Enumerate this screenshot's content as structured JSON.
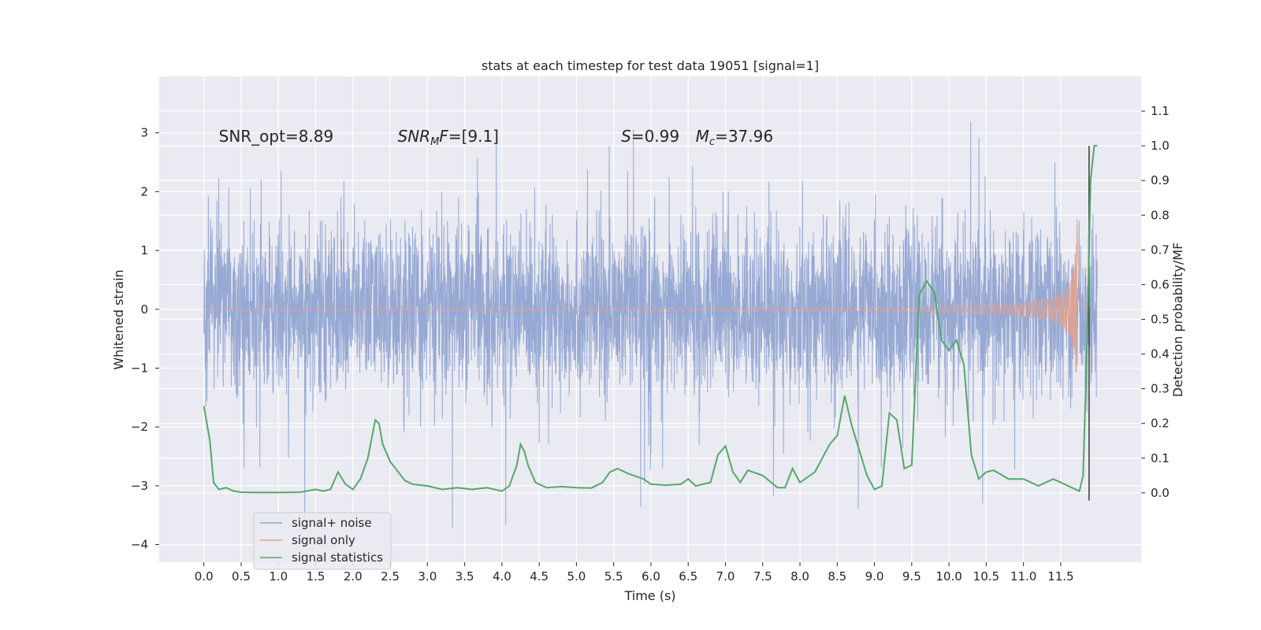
{
  "chart_data": {
    "type": "line",
    "title": "stats at each timestep for test data 19051 [signal=1]",
    "xlabel": "Time (s)",
    "ylabel_left": "Whitened strain",
    "ylabel_right": "Detection probability/MF",
    "xlim": [
      -0.6,
      12.58
    ],
    "ylim_left": [
      -4.3,
      3.96
    ],
    "ylim_right": [
      -0.2,
      1.2
    ],
    "x_ticks": [
      0.0,
      0.5,
      1.0,
      1.5,
      2.0,
      2.5,
      3.0,
      3.5,
      4.0,
      4.5,
      5.0,
      5.5,
      6.0,
      6.5,
      7.0,
      7.5,
      8.0,
      8.5,
      9.0,
      9.5,
      10.0,
      10.5,
      11.0,
      11.5
    ],
    "x_tick_labels": [
      "0.0",
      "0.5",
      "1.0",
      "1.5",
      "2.0",
      "2.5",
      "3.0",
      "3.5",
      "4.0",
      "4.5",
      "5.0",
      "5.5",
      "6.0",
      "6.5",
      "7.0",
      "7.5",
      "8.0",
      "8.5",
      "9.0",
      "9.5",
      "10.0",
      "10.5",
      "11.0",
      "11.5"
    ],
    "y_left_ticks": [
      -4,
      -3,
      -2,
      -1,
      0,
      1,
      2,
      3
    ],
    "y_left_tick_labels": [
      "−4",
      "−3",
      "−2",
      "−1",
      "0",
      "1",
      "2",
      "3"
    ],
    "y_right_ticks": [
      0.0,
      0.1,
      0.2,
      0.3,
      0.4,
      0.5,
      0.6,
      0.7,
      0.8,
      0.9,
      1.0,
      1.1
    ],
    "y_right_tick_labels": [
      "0.0",
      "0.1",
      "0.2",
      "0.3",
      "0.4",
      "0.5",
      "0.6",
      "0.7",
      "0.8",
      "0.9",
      "1.0",
      "1.1"
    ],
    "grid": true,
    "legend_position": "lower-left",
    "annotations": [
      {
        "text": "SNR_opt=8.89",
        "x": 0.2,
        "y": 2.85
      },
      {
        "text": "SNR_MF=[9.1]",
        "x": 2.6,
        "y": 2.85
      },
      {
        "text": "S=0.99",
        "x": 5.6,
        "y": 2.85
      },
      {
        "text": "M_c=37.96",
        "x": 6.6,
        "y": 2.85
      }
    ],
    "detection_marker": {
      "x": 11.88,
      "y_top": 2.78,
      "y_bottom": -3.25,
      "color": "#444444"
    },
    "series": [
      {
        "name": "signal+ noise",
        "axis": "left",
        "color": "#8ea2cf",
        "kind": "noise",
        "duration": [
          0.0,
          11.99
        ],
        "sigma": 0.8,
        "envelope_max": 3.6,
        "envelope_min": -4.1
      },
      {
        "name": "signal only",
        "axis": "left",
        "color": "#e7a189",
        "kind": "chirp",
        "duration": [
          0.0,
          11.99
        ],
        "peak_time": 11.72,
        "peak_amplitude": 1.8
      },
      {
        "name": "signal statistics",
        "axis": "right",
        "color": "#55a868",
        "kind": "line",
        "x": [
          0.0,
          0.08,
          0.13,
          0.2,
          0.3,
          0.4,
          0.5,
          0.7,
          1.0,
          1.3,
          1.5,
          1.6,
          1.7,
          1.8,
          1.9,
          2.0,
          2.1,
          2.2,
          2.3,
          2.35,
          2.4,
          2.5,
          2.7,
          2.8,
          3.0,
          3.2,
          3.4,
          3.6,
          3.8,
          3.9,
          4.0,
          4.1,
          4.2,
          4.25,
          4.3,
          4.35,
          4.45,
          4.6,
          4.8,
          5.0,
          5.2,
          5.35,
          5.45,
          5.55,
          5.7,
          5.9,
          6.0,
          6.2,
          6.4,
          6.5,
          6.6,
          6.8,
          6.9,
          7.0,
          7.1,
          7.2,
          7.3,
          7.5,
          7.7,
          7.8,
          7.9,
          8.0,
          8.2,
          8.4,
          8.5,
          8.6,
          8.7,
          8.8,
          8.9,
          9.0,
          9.1,
          9.2,
          9.3,
          9.4,
          9.5,
          9.6,
          9.7,
          9.8,
          9.9,
          10.0,
          10.1,
          10.2,
          10.3,
          10.4,
          10.5,
          10.6,
          10.8,
          11.0,
          11.2,
          11.3,
          11.4,
          11.5,
          11.6,
          11.7,
          11.75,
          11.8,
          11.85,
          11.9,
          11.95,
          11.99
        ],
        "y": [
          0.25,
          0.15,
          0.03,
          0.01,
          0.015,
          0.005,
          0.002,
          0.001,
          0.001,
          0.002,
          0.01,
          0.005,
          0.01,
          0.06,
          0.025,
          0.01,
          0.04,
          0.1,
          0.21,
          0.2,
          0.14,
          0.09,
          0.035,
          0.025,
          0.02,
          0.01,
          0.015,
          0.01,
          0.015,
          0.01,
          0.005,
          0.02,
          0.08,
          0.14,
          0.12,
          0.08,
          0.03,
          0.015,
          0.018,
          0.015,
          0.014,
          0.03,
          0.06,
          0.07,
          0.055,
          0.04,
          0.025,
          0.022,
          0.025,
          0.04,
          0.02,
          0.03,
          0.11,
          0.135,
          0.06,
          0.03,
          0.065,
          0.05,
          0.015,
          0.015,
          0.07,
          0.03,
          0.06,
          0.14,
          0.165,
          0.28,
          0.19,
          0.12,
          0.05,
          0.01,
          0.02,
          0.23,
          0.21,
          0.07,
          0.08,
          0.57,
          0.61,
          0.58,
          0.44,
          0.41,
          0.44,
          0.37,
          0.11,
          0.04,
          0.06,
          0.065,
          0.04,
          0.04,
          0.02,
          0.03,
          0.04,
          0.03,
          0.02,
          0.01,
          0.005,
          0.05,
          0.4,
          0.9,
          1.0,
          1.0
        ]
      }
    ]
  }
}
